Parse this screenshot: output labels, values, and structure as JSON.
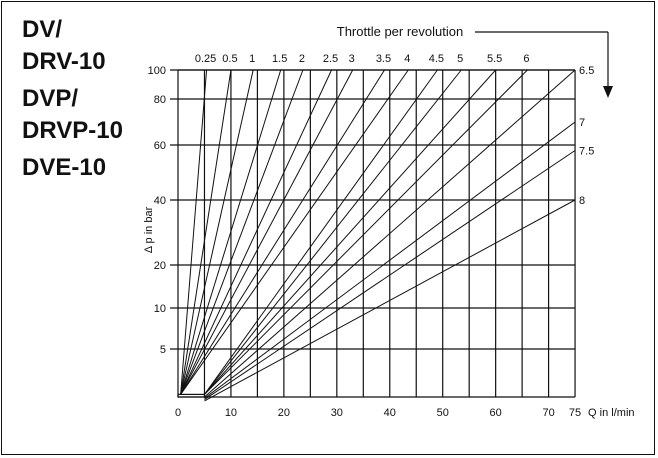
{
  "title_labels": [
    "DV/",
    "DRV-10",
    "DVP/",
    "DRVP-10",
    "DVE-10"
  ],
  "chart_data": {
    "type": "line",
    "title": "Throttle per revolution",
    "xlabel": "Q in l/min",
    "ylabel": "Δ p in bar",
    "x_ticks": [
      0,
      10,
      20,
      30,
      40,
      50,
      60,
      70,
      75
    ],
    "y_ticks": [
      5,
      10,
      20,
      40,
      60,
      80,
      100
    ],
    "xlim": [
      0,
      75
    ],
    "ylim": [
      1.3,
      100
    ],
    "y_scale": "nonlinear",
    "grid": true,
    "annotation": "Throttle per revolution",
    "series": [
      {
        "name": "0.25",
        "x": [
          0.5,
          5.4
        ],
        "y": [
          1.5,
          100
        ]
      },
      {
        "name": "0.5",
        "x": [
          0.5,
          10.0
        ],
        "y": [
          1.5,
          100
        ]
      },
      {
        "name": "1",
        "x": [
          0.5,
          14.2
        ],
        "y": [
          1.5,
          100
        ]
      },
      {
        "name": "1.5",
        "x": [
          0.5,
          19.4
        ],
        "y": [
          1.5,
          100
        ]
      },
      {
        "name": "2",
        "x": [
          0.5,
          23.6
        ],
        "y": [
          1.5,
          100
        ]
      },
      {
        "name": "2.5",
        "x": [
          0.5,
          29.0
        ],
        "y": [
          1.5,
          100
        ]
      },
      {
        "name": "3",
        "x": [
          0.5,
          33.0
        ],
        "y": [
          1.5,
          100
        ]
      },
      {
        "name": "3.5",
        "x": [
          0.5,
          39.0
        ],
        "y": [
          1.5,
          100
        ]
      },
      {
        "name": "4",
        "x": [
          0.5,
          43.5
        ],
        "y": [
          1.5,
          100
        ]
      },
      {
        "name": "4.5",
        "x": [
          5.0,
          49.0
        ],
        "y": [
          1.5,
          100
        ]
      },
      {
        "name": "5",
        "x": [
          5.0,
          53.5
        ],
        "y": [
          1.5,
          100
        ]
      },
      {
        "name": "5.5",
        "x": [
          5.0,
          60.0
        ],
        "y": [
          1.5,
          100
        ]
      },
      {
        "name": "6",
        "x": [
          5.0,
          66.0
        ],
        "y": [
          1.5,
          100
        ]
      },
      {
        "name": "6.5",
        "x": [
          5.0,
          75.0
        ],
        "y": [
          1.3,
          100
        ]
      },
      {
        "name": "7",
        "x": [
          5.0,
          75.0
        ],
        "y": [
          1.2,
          70
        ]
      },
      {
        "name": "7.5",
        "x": [
          5.0,
          75.0
        ],
        "y": [
          1.1,
          58
        ]
      },
      {
        "name": "8",
        "x": [
          5.0,
          75.0
        ],
        "y": [
          1.0,
          40
        ]
      }
    ]
  }
}
